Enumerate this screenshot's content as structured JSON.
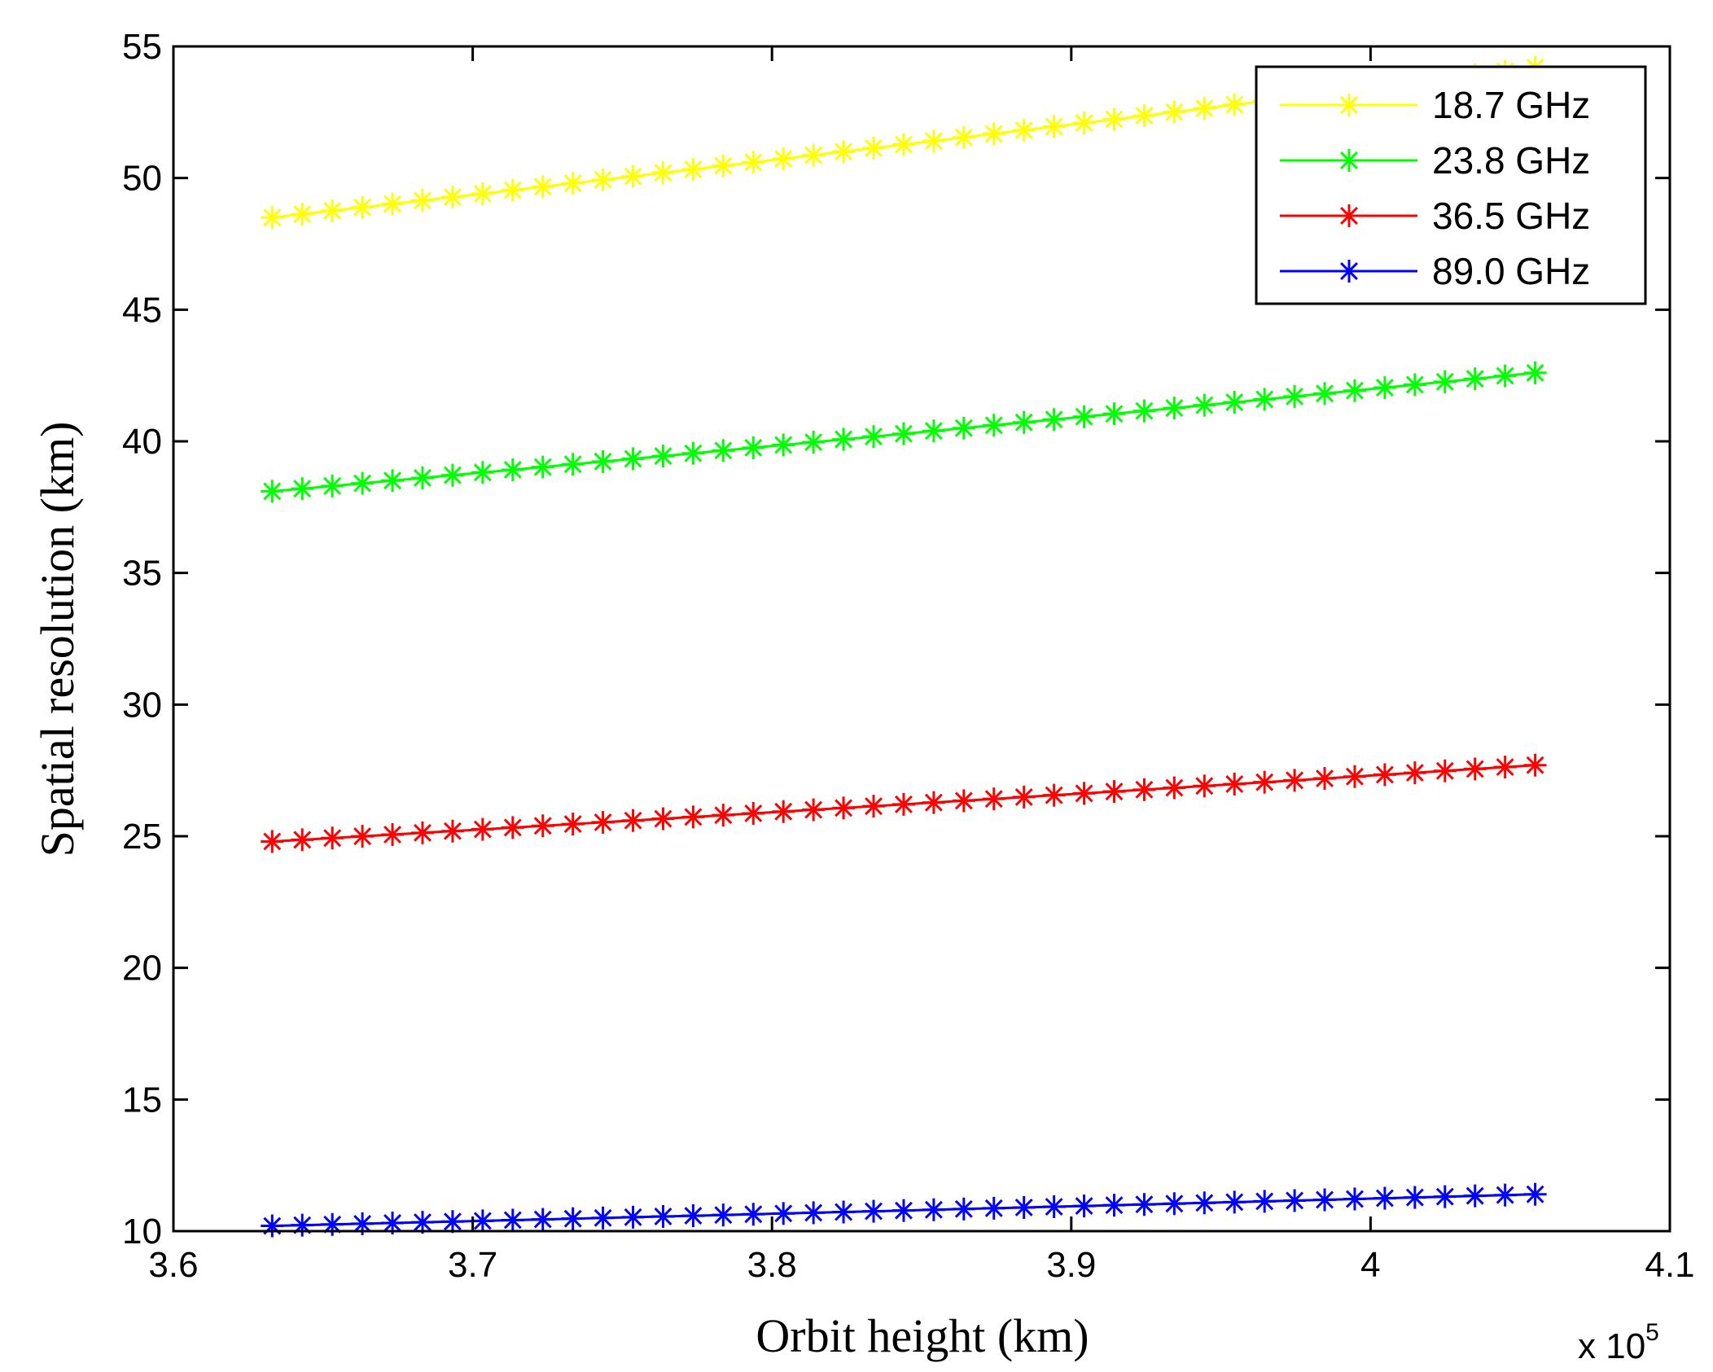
{
  "chart_data": {
    "type": "line",
    "xlabel": "Orbit height (km)",
    "ylabel": "Spatial resolution (km)",
    "x_multiplier": "x 10",
    "x_multiplier_exponent": "5",
    "xlim": [
      3.6,
      4.1
    ],
    "ylim": [
      10,
      55
    ],
    "xticks": [
      "3.6",
      "3.7",
      "3.8",
      "3.9",
      "4",
      "4.1"
    ],
    "yticks": [
      "10",
      "15",
      "20",
      "25",
      "30",
      "35",
      "40",
      "45",
      "50",
      "55"
    ],
    "xticks_values": [
      3.6,
      3.7,
      3.8,
      3.9,
      4.0,
      4.1
    ],
    "yticks_values": [
      10,
      15,
      20,
      25,
      30,
      35,
      40,
      45,
      50,
      55
    ],
    "x_start": 3.633,
    "x_end": 4.055,
    "points_per_series": 43,
    "legend_position": "top-right",
    "grid": false,
    "marker": "asterisk",
    "series": [
      {
        "name": "18.7 GHz",
        "color": "#ffff00",
        "y_start": 48.5,
        "y_end": 54.2
      },
      {
        "name": "23.8 GHz",
        "color": "#00ff00",
        "y_start": 38.1,
        "y_end": 42.6
      },
      {
        "name": "36.5 GHz",
        "color": "#ff0000",
        "y_start": 24.8,
        "y_end": 27.7
      },
      {
        "name": "89.0 GHz",
        "color": "#0000ff",
        "y_start": 10.2,
        "y_end": 11.4
      }
    ]
  }
}
